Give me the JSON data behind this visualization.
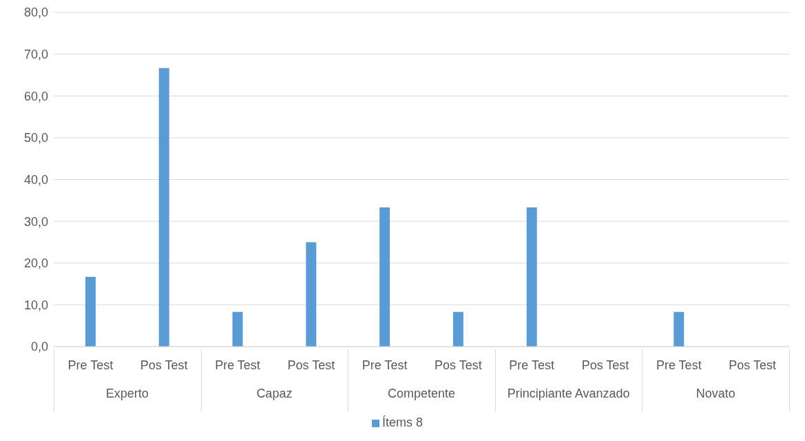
{
  "chart_data": {
    "type": "bar",
    "categories": [
      "Pre Test",
      "Pos Test",
      "Pre Test",
      "Pos Test",
      "Pre Test",
      "Pos Test",
      "Pre Test",
      "Pos Test",
      "Pre Test",
      "Pos Test"
    ],
    "series": [
      {
        "name": "Ítems 8",
        "color": "#5b9bd5",
        "values": [
          16.7,
          66.7,
          8.3,
          25.0,
          33.3,
          8.3,
          33.3,
          0,
          8.3,
          0
        ]
      }
    ],
    "annotations": [
      "Experto",
      "Capaz",
      "Competente",
      "Principiante Avanzado",
      "Novato"
    ],
    "ylim": [
      0,
      80
    ],
    "yticks": [
      {
        "value": 0,
        "label": "0,0"
      },
      {
        "value": 10,
        "label": "10,0"
      },
      {
        "value": 20,
        "label": "20,0"
      },
      {
        "value": 30,
        "label": "30,0"
      },
      {
        "value": 40,
        "label": "40,0"
      },
      {
        "value": 50,
        "label": "50,0"
      },
      {
        "value": 60,
        "label": "60,0"
      },
      {
        "value": 70,
        "label": "70,0"
      },
      {
        "value": 80,
        "label": "80,0"
      }
    ],
    "grid": "y",
    "legend": "bottom"
  }
}
